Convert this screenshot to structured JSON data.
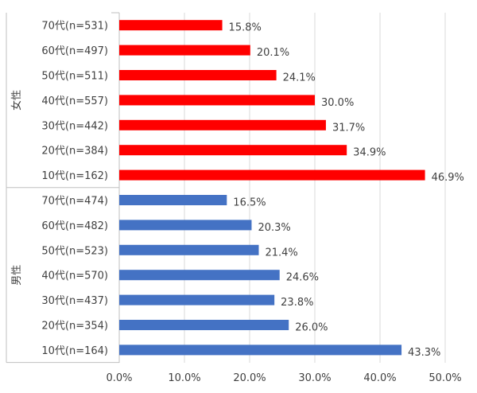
{
  "chart_data": {
    "type": "bar",
    "orientation": "horizontal",
    "title": "",
    "xlabel": "",
    "ylabel": "",
    "xlim": [
      0,
      50
    ],
    "x_ticks": [
      "0.0%",
      "10.0%",
      "20.0%",
      "30.0%",
      "40.0%",
      "50.0%"
    ],
    "grid": true,
    "groups": [
      {
        "name": "女性",
        "color": "#ff0000",
        "categories": [
          "70代(n=531)",
          "60代(n=497)",
          "50代(n=511)",
          "40代(n=557)",
          "30代(n=442)",
          "20代(n=384)",
          "10代(n=162)"
        ],
        "values": [
          15.8,
          20.1,
          24.1,
          30.0,
          31.7,
          34.9,
          46.9
        ],
        "labels": [
          "15.8%",
          "20.1%",
          "24.1%",
          "30.0%",
          "31.7%",
          "34.9%",
          "46.9%"
        ]
      },
      {
        "name": "男性",
        "color": "#4472c4",
        "categories": [
          "70代(n=474)",
          "60代(n=482)",
          "50代(n=523)",
          "40代(n=570)",
          "30代(n=437)",
          "20代(n=354)",
          "10代(n=164)"
        ],
        "values": [
          16.5,
          20.3,
          21.4,
          24.6,
          23.8,
          26.0,
          43.3
        ],
        "labels": [
          "16.5%",
          "20.3%",
          "21.4%",
          "24.6%",
          "23.8%",
          "26.0%",
          "43.3%"
        ]
      }
    ]
  }
}
